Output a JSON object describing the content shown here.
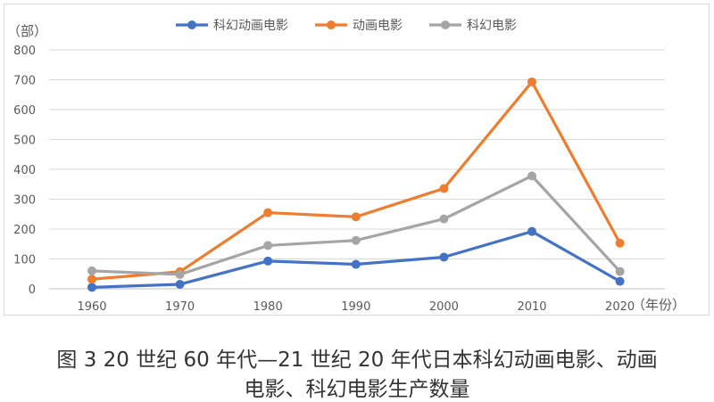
{
  "chart_data": {
    "type": "line",
    "title": "",
    "ylabel": "（部）",
    "xlabel": "（年份）",
    "categories": [
      "1960",
      "1970",
      "1980",
      "1990",
      "2000",
      "2010",
      "2020"
    ],
    "ylim": [
      0,
      800
    ],
    "yticks": [
      0,
      100,
      200,
      300,
      400,
      500,
      600,
      700,
      800
    ],
    "grid": true,
    "legend_position": "top-center",
    "series": [
      {
        "name": "科幻动画电影",
        "color": "#4472c4",
        "values": [
          5,
          15,
          93,
          82,
          106,
          192,
          25
        ]
      },
      {
        "name": "动画电影",
        "color": "#ed7d31",
        "values": [
          32,
          57,
          255,
          241,
          336,
          693,
          153
        ]
      },
      {
        "name": "科幻电影",
        "color": "#a5a5a5",
        "values": [
          60,
          48,
          145,
          162,
          234,
          378,
          58
        ]
      }
    ]
  },
  "caption": {
    "line1": "图 3  20 世纪 60 年代—21 世纪 20 年代日本科幻动画电影、动画",
    "line2": "电影、科幻电影生产数量"
  }
}
